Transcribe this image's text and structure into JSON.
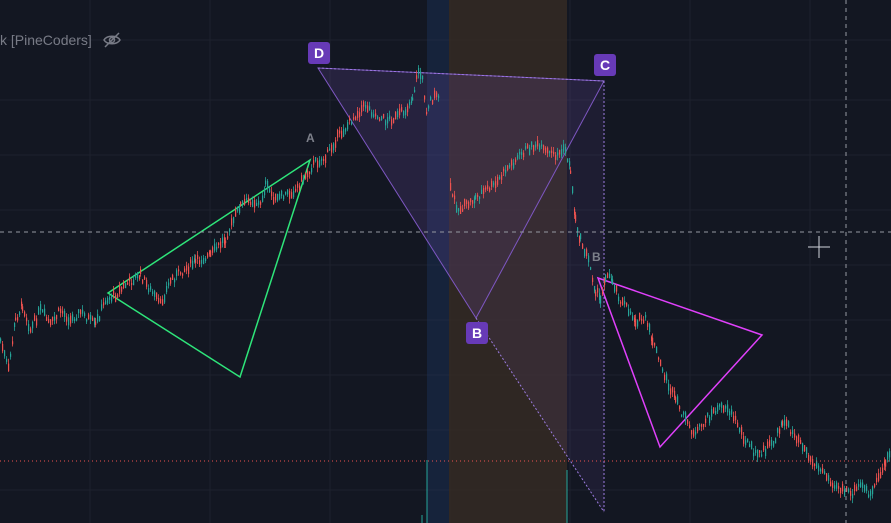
{
  "indicator": {
    "label": "k [PineCoders]",
    "eye_icon": "eye-slash-icon"
  },
  "colors": {
    "background": "#131722",
    "grid": "#1e222d",
    "up_candle": "#26a69a",
    "down_candle": "#ef5350",
    "pattern_purple": "#7e57c2",
    "pattern_green": "#2ee57a",
    "pattern_magenta": "#e040fb",
    "badge": "#673ab7",
    "crosshair": "#9598a1",
    "price_line": "#ef5350",
    "blue_band": "#1e3a6a",
    "orange_band": "#3a2e24"
  },
  "points": {
    "D": "D",
    "C": "C",
    "B": "B",
    "A": "A",
    "B_small": "B"
  },
  "chart_data": {
    "type": "candlestick",
    "series": [
      {
        "name": "",
        "path": [
          [
            0,
            340
          ],
          [
            8,
            370
          ],
          [
            15,
            320
          ],
          [
            22,
            305
          ],
          [
            30,
            330
          ],
          [
            40,
            310
          ],
          [
            50,
            325
          ],
          [
            60,
            310
          ],
          [
            70,
            320
          ],
          [
            80,
            312
          ],
          [
            95,
            325
          ],
          [
            105,
            300
          ],
          [
            115,
            295
          ],
          [
            125,
            285
          ],
          [
            140,
            275
          ],
          [
            150,
            290
          ],
          [
            160,
            305
          ],
          [
            170,
            280
          ],
          [
            180,
            272
          ],
          [
            195,
            262
          ],
          [
            210,
            255
          ],
          [
            225,
            238
          ],
          [
            240,
            205
          ],
          [
            250,
            200
          ],
          [
            260,
            205
          ],
          [
            265,
            185
          ],
          [
            275,
            200
          ],
          [
            285,
            195
          ],
          [
            295,
            190
          ],
          [
            305,
            175
          ],
          [
            315,
            162
          ],
          [
            325,
            158
          ],
          [
            335,
            140
          ],
          [
            345,
            128
          ],
          [
            355,
            115
          ],
          [
            365,
            105
          ],
          [
            375,
            115
          ],
          [
            385,
            120
          ],
          [
            395,
            118
          ],
          [
            405,
            110
          ],
          [
            412,
            98
          ],
          [
            418,
            70
          ],
          [
            422,
            80
          ],
          [
            426,
            110
          ],
          [
            430,
            100
          ],
          [
            440,
            95
          ]
        ]
      },
      {
        "name": "",
        "path": [
          [
            450,
            190
          ],
          [
            458,
            210
          ],
          [
            466,
            205
          ],
          [
            475,
            198
          ],
          [
            485,
            190
          ],
          [
            495,
            185
          ],
          [
            505,
            170
          ],
          [
            515,
            160
          ],
          [
            525,
            150
          ],
          [
            535,
            145
          ],
          [
            545,
            152
          ],
          [
            555,
            155
          ],
          [
            565,
            150
          ],
          [
            570,
            170
          ],
          [
            575,
            220
          ],
          [
            580,
            240
          ],
          [
            588,
            260
          ],
          [
            595,
            290
          ],
          [
            600,
            300
          ],
          [
            605,
            275
          ],
          [
            612,
            280
          ],
          [
            620,
            300
          ],
          [
            628,
            310
          ],
          [
            635,
            320
          ],
          [
            645,
            320
          ],
          [
            652,
            340
          ],
          [
            660,
            365
          ],
          [
            668,
            385
          ],
          [
            675,
            400
          ],
          [
            685,
            420
          ],
          [
            695,
            435
          ],
          [
            705,
            420
          ],
          [
            715,
            410
          ],
          [
            725,
            405
          ],
          [
            735,
            420
          ],
          [
            745,
            440
          ],
          [
            755,
            455
          ],
          [
            765,
            450
          ],
          [
            775,
            440
          ],
          [
            782,
            420
          ],
          [
            790,
            430
          ],
          [
            800,
            440
          ],
          [
            810,
            460
          ],
          [
            820,
            470
          ],
          [
            830,
            480
          ],
          [
            840,
            488
          ],
          [
            850,
            495
          ],
          [
            860,
            485
          ],
          [
            870,
            495
          ],
          [
            878,
            480
          ],
          [
            885,
            460
          ],
          [
            891,
            450
          ]
        ]
      }
    ],
    "patterns": [
      {
        "name": "",
        "shape": "triangle",
        "points": [
          "D",
          "C",
          "B"
        ]
      },
      {
        "name": "",
        "shape": "triangle",
        "points": [
          "",
          "A",
          ""
        ]
      },
      {
        "name": "",
        "shape": "triangle",
        "points": [
          "B",
          "",
          ""
        ]
      }
    ]
  }
}
